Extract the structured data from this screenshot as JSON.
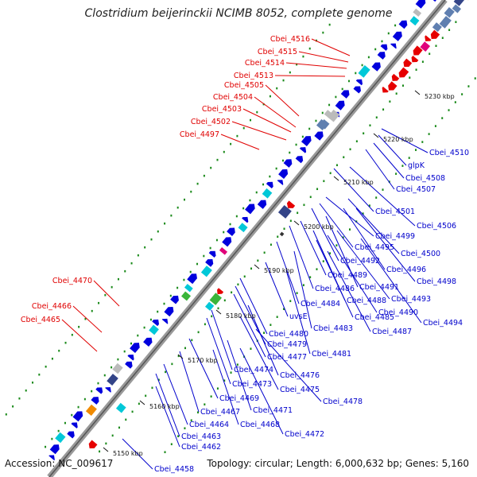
{
  "title": "Clostridium beijerinckii NCIMB 8052, complete genome",
  "accession": "Accession: NC_009617",
  "topology": "Topology: circular; Length: 6,000,632 bp; Genes: 5,160",
  "ticks": [
    "5150 kbp",
    "5160 kbp",
    "5170 kbp",
    "5180 kbp",
    "5190 kbp",
    "5200 kbp",
    "5210 kbp",
    "5220 kbp",
    "5230 kbp"
  ],
  "red_labels": [
    "Cbei_4516",
    "Cbei_4515",
    "Cbei_4514",
    "Cbei_4513",
    "Cbei_4505",
    "Cbei_4504",
    "Cbei_4503",
    "Cbei_4502",
    "Cbei_4497",
    "Cbei_4470",
    "Cbei_4466",
    "Cbei_4465"
  ],
  "blue_labels": [
    "Cbei_4510",
    "glpK",
    "Cbei_4508",
    "Cbei_4507",
    "Cbei_4501",
    "Cbei_4506",
    "Cbei_4499",
    "Cbei_4495",
    "Cbei_4500",
    "Cbei_4492",
    "Cbei_4496",
    "Cbei_4489",
    "Cbei_4498",
    "Cbei_4486",
    "Cbei_4491",
    "Cbei_4488",
    "Cbei_4493",
    "Cbei_4484",
    "Cbei_4490",
    "uvsE",
    "Cbei_4485",
    "Cbei_4494",
    "Cbei_4483",
    "Cbei_4487",
    "Cbei_4480",
    "Cbei_4479",
    "Cbei_4481",
    "Cbei_4477",
    "Cbei_4474",
    "Cbei_4476",
    "Cbei_4473",
    "Cbei_4475",
    "Cbei_4469",
    "Cbei_4478",
    "Cbei_4467",
    "Cbei_4471",
    "Cbei_4464",
    "Cbei_4468",
    "Cbei_4472",
    "Cbei_4463",
    "Cbei_4462",
    "Cbei_4458"
  ],
  "colors": {
    "forward": "#0000cc",
    "reverse": "#e00000",
    "backbone": "#888888",
    "gc": "#1a8a1a"
  }
}
